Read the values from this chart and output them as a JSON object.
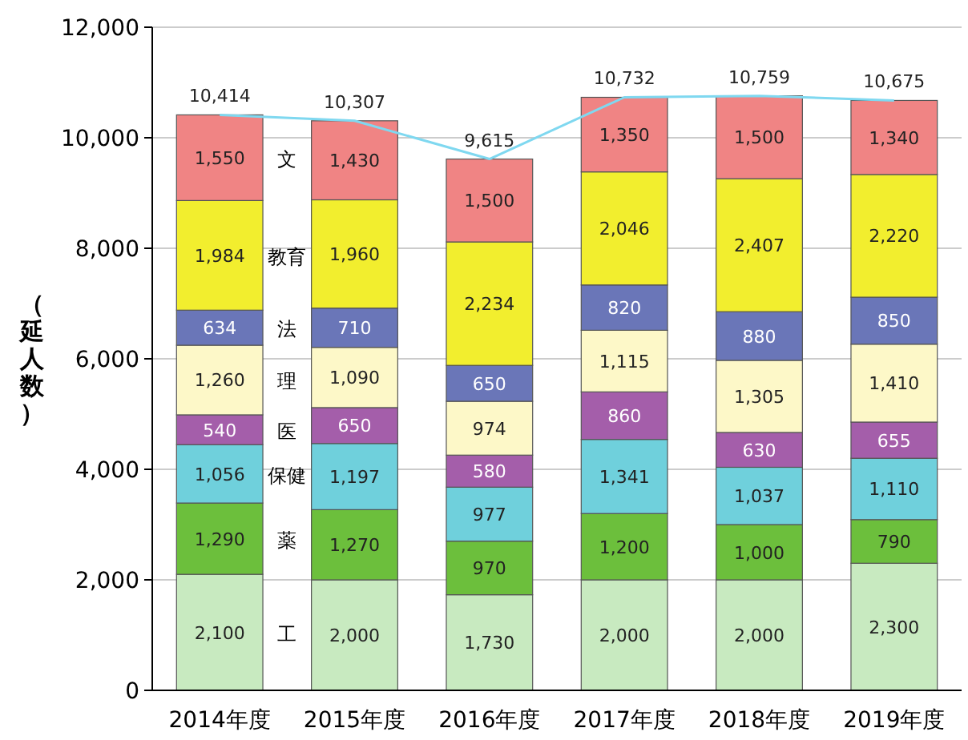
{
  "chart_data": {
    "type": "bar",
    "stacked": true,
    "ylabel": "（延人数）",
    "categories": [
      "2014年度",
      "2015年度",
      "2016年度",
      "2017年度",
      "2018年度",
      "2019年度"
    ],
    "ylim": [
      0,
      12000
    ],
    "yticks": [
      {
        "value": 0,
        "label": "0"
      },
      {
        "value": 2000,
        "label": "2,000"
      },
      {
        "value": 4000,
        "label": "4,000"
      },
      {
        "value": 6000,
        "label": "6,000"
      },
      {
        "value": 8000,
        "label": "8,000"
      },
      {
        "value": 10000,
        "label": "10,000"
      },
      {
        "value": 12000,
        "label": "12,000"
      }
    ],
    "grid": "y",
    "series": [
      {
        "name": "工",
        "color": "#c8eac0",
        "values": [
          2100,
          2000,
          1730,
          2000,
          2000,
          2300
        ],
        "value_labels": [
          "2,100",
          "2,000",
          "1,730",
          "2,000",
          "2,000",
          "2,300"
        ]
      },
      {
        "name": "薬",
        "color": "#6cbf3c",
        "values": [
          1290,
          1270,
          970,
          1200,
          1000,
          790
        ],
        "value_labels": [
          "1,290",
          "1,270",
          "970",
          "1,200",
          "1,000",
          "790"
        ]
      },
      {
        "name": "保健",
        "color": "#6fd0dc",
        "values": [
          1056,
          1197,
          977,
          1341,
          1037,
          1110
        ],
        "value_labels": [
          "1,056",
          "1,197",
          "977",
          "1,341",
          "1,037",
          "1,110"
        ]
      },
      {
        "name": "医",
        "color": "#a45eaa",
        "values": [
          540,
          650,
          580,
          860,
          630,
          655
        ],
        "value_labels": [
          "540",
          "650",
          "580",
          "860",
          "630",
          "655"
        ]
      },
      {
        "name": "理",
        "color": "#fdf8c8",
        "values": [
          1260,
          1090,
          974,
          1115,
          1305,
          1410
        ],
        "value_labels": [
          "1,260",
          "1,090",
          "974",
          "1,115",
          "1,305",
          "1,410"
        ]
      },
      {
        "name": "法",
        "color": "#6a76b8",
        "values": [
          634,
          710,
          650,
          820,
          880,
          850
        ],
        "value_labels": [
          "634",
          "710",
          "650",
          "820",
          "880",
          "850"
        ]
      },
      {
        "name": "教育",
        "color": "#f2ee2e",
        "values": [
          1984,
          1960,
          2234,
          2046,
          2407,
          2220
        ],
        "value_labels": [
          "1,984",
          "1,960",
          "2,234",
          "2,046",
          "2,407",
          "2,220"
        ]
      },
      {
        "name": "文",
        "color": "#f08484",
        "values": [
          1550,
          1430,
          1500,
          1350,
          1500,
          1340
        ],
        "value_labels": [
          "1,550",
          "1,430",
          "1,500",
          "1,350",
          "1,500",
          "1,340"
        ]
      },
      {
        "type": "line",
        "color": "#7fd8f0",
        "values": [
          10414,
          10307,
          9615,
          10732,
          10759,
          10675
        ],
        "value_labels": [
          "10,414",
          "10,307",
          "9,615",
          "10,732",
          "10,759",
          "10,675"
        ]
      }
    ]
  }
}
